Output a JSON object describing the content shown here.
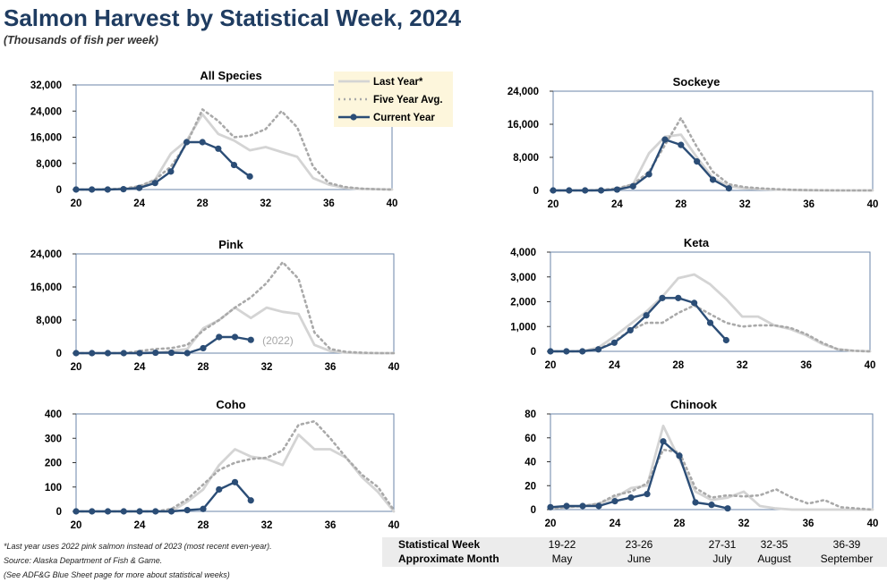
{
  "title": "Salmon Harvest by Statistical Week, 2024",
  "subtitle": "(Thousands of fish per week)",
  "legend": {
    "last_year": "Last Year*",
    "five_year": "Five Year Avg.",
    "current": "Current Year"
  },
  "colors": {
    "title": "#1f3c61",
    "current_year": "#2b4d76",
    "last_year": "#d4d4d4",
    "five_year_avg": "#a9a9a9",
    "legend_bg": "#fdf6dc"
  },
  "chart_data": [
    {
      "id": "all",
      "type": "line",
      "title": "All Species",
      "x_ticks": [
        20,
        24,
        28,
        32,
        36,
        40
      ],
      "xlim": [
        20,
        40
      ],
      "ylim": [
        0,
        32000
      ],
      "y_ticks": [
        0,
        8000,
        16000,
        24000,
        32000
      ],
      "y_tick_labels": [
        "0",
        "8,000",
        "16,000",
        "24,000",
        "32,000"
      ],
      "series": [
        {
          "name": "Last Year*",
          "x": [
            20,
            21,
            22,
            23,
            24,
            25,
            26,
            27,
            28,
            29,
            30,
            31,
            32,
            33,
            34,
            35,
            36,
            37,
            38,
            39,
            40
          ],
          "values": [
            0,
            0,
            100,
            200,
            800,
            3000,
            11000,
            15000,
            23000,
            17000,
            15000,
            12000,
            13000,
            11500,
            10000,
            3500,
            1500,
            500,
            200,
            100,
            0
          ]
        },
        {
          "name": "Five Year Avg.",
          "x": [
            20,
            21,
            22,
            23,
            24,
            25,
            26,
            27,
            28,
            29,
            30,
            31,
            32,
            33,
            34,
            35,
            36,
            37,
            38,
            39,
            40
          ],
          "values": [
            0,
            0,
            100,
            300,
            1000,
            3000,
            7000,
            14000,
            24500,
            21000,
            16000,
            16500,
            18500,
            24000,
            19000,
            7000,
            2000,
            800,
            300,
            100,
            0
          ]
        },
        {
          "name": "Current Year",
          "x": [
            20,
            21,
            22,
            23,
            24,
            25,
            26,
            27,
            28,
            29,
            30,
            31
          ],
          "values": [
            0,
            0,
            0,
            100,
            500,
            2000,
            5500,
            14500,
            14500,
            12500,
            7500,
            4000
          ]
        }
      ]
    },
    {
      "id": "sockeye",
      "type": "line",
      "title": "Sockeye",
      "x_ticks": [
        20,
        24,
        28,
        32,
        36,
        40
      ],
      "xlim": [
        20,
        40
      ],
      "ylim": [
        0,
        24000
      ],
      "y_ticks": [
        0,
        8000,
        16000,
        24000
      ],
      "y_tick_labels": [
        "0",
        "8,000",
        "16,000",
        "24,000"
      ],
      "series": [
        {
          "name": "Last Year*",
          "x": [
            20,
            21,
            22,
            23,
            24,
            25,
            26,
            27,
            28,
            29,
            30,
            31,
            32,
            33,
            34,
            35,
            36,
            37,
            38,
            39,
            40
          ],
          "values": [
            0,
            0,
            0,
            100,
            300,
            1500,
            9000,
            13000,
            13500,
            8000,
            3000,
            1000,
            500,
            300,
            200,
            100,
            50,
            0,
            0,
            0,
            0
          ]
        },
        {
          "name": "Five Year Avg.",
          "x": [
            20,
            21,
            22,
            23,
            24,
            25,
            26,
            27,
            28,
            29,
            30,
            31,
            32,
            33,
            34,
            35,
            36,
            37,
            38,
            39,
            40
          ],
          "values": [
            0,
            0,
            0,
            100,
            500,
            1500,
            4500,
            11000,
            17500,
            10500,
            4500,
            1500,
            800,
            500,
            300,
            150,
            80,
            50,
            0,
            0,
            0
          ]
        },
        {
          "name": "Current Year",
          "x": [
            20,
            21,
            22,
            23,
            24,
            25,
            26,
            27,
            28,
            29,
            30,
            31
          ],
          "values": [
            0,
            0,
            0,
            0,
            200,
            1000,
            3900,
            12300,
            11000,
            7000,
            2600,
            500
          ]
        }
      ]
    },
    {
      "id": "pink",
      "type": "line",
      "title": "Pink",
      "x_ticks": [
        20,
        24,
        28,
        32,
        36,
        40
      ],
      "xlim": [
        20,
        40
      ],
      "ylim": [
        0,
        24000
      ],
      "y_ticks": [
        0,
        8000,
        16000,
        24000
      ],
      "y_tick_labels": [
        "0",
        "8,000",
        "16,000",
        "24,000"
      ],
      "annotation": "(2022)",
      "series": [
        {
          "name": "Last Year*",
          "x": [
            20,
            21,
            22,
            23,
            24,
            25,
            26,
            27,
            28,
            29,
            30,
            31,
            32,
            33,
            34,
            35,
            36,
            37,
            38,
            39,
            40
          ],
          "values": [
            0,
            0,
            0,
            0,
            0,
            0,
            500,
            1000,
            6000,
            8000,
            11000,
            8500,
            11000,
            10000,
            9500,
            2000,
            500,
            100,
            0,
            0,
            0
          ]
        },
        {
          "name": "Five Year Avg.",
          "x": [
            20,
            21,
            22,
            23,
            24,
            25,
            26,
            27,
            28,
            29,
            30,
            31,
            32,
            33,
            34,
            35,
            36,
            37,
            38,
            39,
            40
          ],
          "values": [
            0,
            0,
            0,
            0,
            500,
            1000,
            1200,
            2000,
            5500,
            8000,
            11000,
            13500,
            17000,
            22000,
            18000,
            5000,
            1000,
            300,
            100,
            0,
            0
          ]
        },
        {
          "name": "Current Year",
          "x": [
            20,
            21,
            22,
            23,
            24,
            25,
            26,
            27,
            28,
            29,
            30,
            31
          ],
          "values": [
            0,
            0,
            0,
            0,
            0,
            100,
            100,
            0,
            1200,
            3900,
            3900,
            3200
          ]
        }
      ]
    },
    {
      "id": "keta",
      "type": "line",
      "title": "Keta",
      "x_ticks": [
        20,
        24,
        28,
        32,
        36,
        40
      ],
      "xlim": [
        20,
        40
      ],
      "ylim": [
        0,
        4000
      ],
      "y_ticks": [
        0,
        1000,
        2000,
        3000,
        4000
      ],
      "y_tick_labels": [
        "0",
        "1,000",
        "2,000",
        "3,000",
        "4,000"
      ],
      "series": [
        {
          "name": "Last Year*",
          "x": [
            20,
            21,
            22,
            23,
            24,
            25,
            26,
            27,
            28,
            29,
            30,
            31,
            32,
            33,
            34,
            35,
            36,
            37,
            38,
            39,
            40
          ],
          "values": [
            0,
            0,
            10,
            150,
            600,
            1100,
            1600,
            2200,
            2950,
            3100,
            2700,
            2100,
            1400,
            1400,
            1050,
            900,
            650,
            300,
            80,
            20,
            0
          ]
        },
        {
          "name": "Five Year Avg.",
          "x": [
            20,
            21,
            22,
            23,
            24,
            25,
            26,
            27,
            28,
            29,
            30,
            31,
            32,
            33,
            34,
            35,
            36,
            37,
            38,
            39,
            40
          ],
          "values": [
            0,
            0,
            10,
            80,
            400,
            850,
            1150,
            1150,
            1550,
            1850,
            1500,
            1150,
            1000,
            1050,
            1050,
            950,
            700,
            350,
            80,
            20,
            0
          ]
        },
        {
          "name": "Current Year",
          "x": [
            20,
            21,
            22,
            23,
            24,
            25,
            26,
            27,
            28,
            29,
            30,
            31
          ],
          "values": [
            0,
            0,
            0,
            80,
            350,
            850,
            1450,
            2150,
            2150,
            1950,
            1150,
            450
          ]
        }
      ]
    },
    {
      "id": "coho",
      "type": "line",
      "title": "Coho",
      "x_ticks": [
        20,
        24,
        28,
        32,
        36,
        40
      ],
      "xlim": [
        20,
        40
      ],
      "ylim": [
        0,
        400
      ],
      "y_ticks": [
        0,
        100,
        200,
        300,
        400
      ],
      "y_tick_labels": [
        "0",
        "100",
        "200",
        "300",
        "400"
      ],
      "series": [
        {
          "name": "Last Year*",
          "x": [
            20,
            21,
            22,
            23,
            24,
            25,
            26,
            27,
            28,
            29,
            30,
            31,
            32,
            33,
            34,
            35,
            36,
            37,
            38,
            39,
            40
          ],
          "values": [
            0,
            0,
            0,
            0,
            0,
            0,
            0,
            40,
            90,
            190,
            255,
            225,
            215,
            190,
            315,
            255,
            255,
            220,
            140,
            80,
            0
          ]
        },
        {
          "name": "Five Year Avg.",
          "x": [
            20,
            21,
            22,
            23,
            24,
            25,
            26,
            27,
            28,
            29,
            30,
            31,
            32,
            33,
            34,
            35,
            36,
            37,
            38,
            39,
            40
          ],
          "values": [
            0,
            0,
            0,
            0,
            0,
            0,
            10,
            50,
            110,
            170,
            200,
            215,
            220,
            250,
            355,
            370,
            300,
            220,
            150,
            100,
            5
          ]
        },
        {
          "name": "Current Year",
          "x": [
            20,
            21,
            22,
            23,
            24,
            25,
            26,
            27,
            28,
            29,
            30,
            31
          ],
          "values": [
            0,
            0,
            0,
            0,
            0,
            0,
            0,
            5,
            10,
            90,
            120,
            45
          ]
        }
      ]
    },
    {
      "id": "chinook",
      "type": "line",
      "title": "Chinook",
      "x_ticks": [
        20,
        24,
        28,
        32,
        36,
        40
      ],
      "xlim": [
        20,
        40
      ],
      "ylim": [
        0,
        80
      ],
      "y_ticks": [
        0,
        20,
        40,
        60,
        80
      ],
      "y_tick_labels": [
        "0",
        "20",
        "40",
        "60",
        "80"
      ],
      "series": [
        {
          "name": "Last Year*",
          "x": [
            20,
            21,
            22,
            23,
            24,
            25,
            26,
            27,
            28,
            29,
            30,
            31,
            32,
            33,
            34,
            35,
            36,
            37,
            38,
            39,
            40
          ],
          "values": [
            1,
            2,
            3,
            5,
            10,
            18,
            20,
            70,
            42,
            15,
            8,
            10,
            15,
            3,
            1,
            0,
            0,
            0,
            0,
            0,
            0
          ]
        },
        {
          "name": "Five Year Avg.",
          "x": [
            20,
            21,
            22,
            23,
            24,
            25,
            26,
            27,
            28,
            29,
            30,
            31,
            32,
            33,
            34,
            35,
            36,
            37,
            38,
            39,
            40
          ],
          "values": [
            1,
            2,
            3,
            5,
            12,
            15,
            22,
            50,
            48,
            18,
            10,
            12,
            11,
            12,
            17,
            10,
            5,
            8,
            2,
            1,
            0
          ]
        },
        {
          "name": "Current Year",
          "x": [
            20,
            21,
            22,
            23,
            24,
            25,
            26,
            27,
            28,
            29,
            30,
            31
          ],
          "values": [
            2,
            3,
            3,
            3,
            7,
            10,
            13,
            57,
            45,
            6,
            4,
            1
          ]
        }
      ]
    }
  ],
  "footnotes": [
    "*Last year uses 2022 pink salmon instead of 2023 (most recent even-year).",
    "Source: Alaska Department of Fish & Game.",
    " (See ADF&G Blue Sheet page for more about statistical weeks)"
  ],
  "week_table": {
    "row1_label": "Statistical Week",
    "row2_label": "Approximate Month",
    "weeks": [
      "19-22",
      "23-26",
      "27-31",
      "32-35",
      "36-39"
    ],
    "months": [
      "May",
      "June",
      "July",
      "August",
      "September"
    ]
  }
}
